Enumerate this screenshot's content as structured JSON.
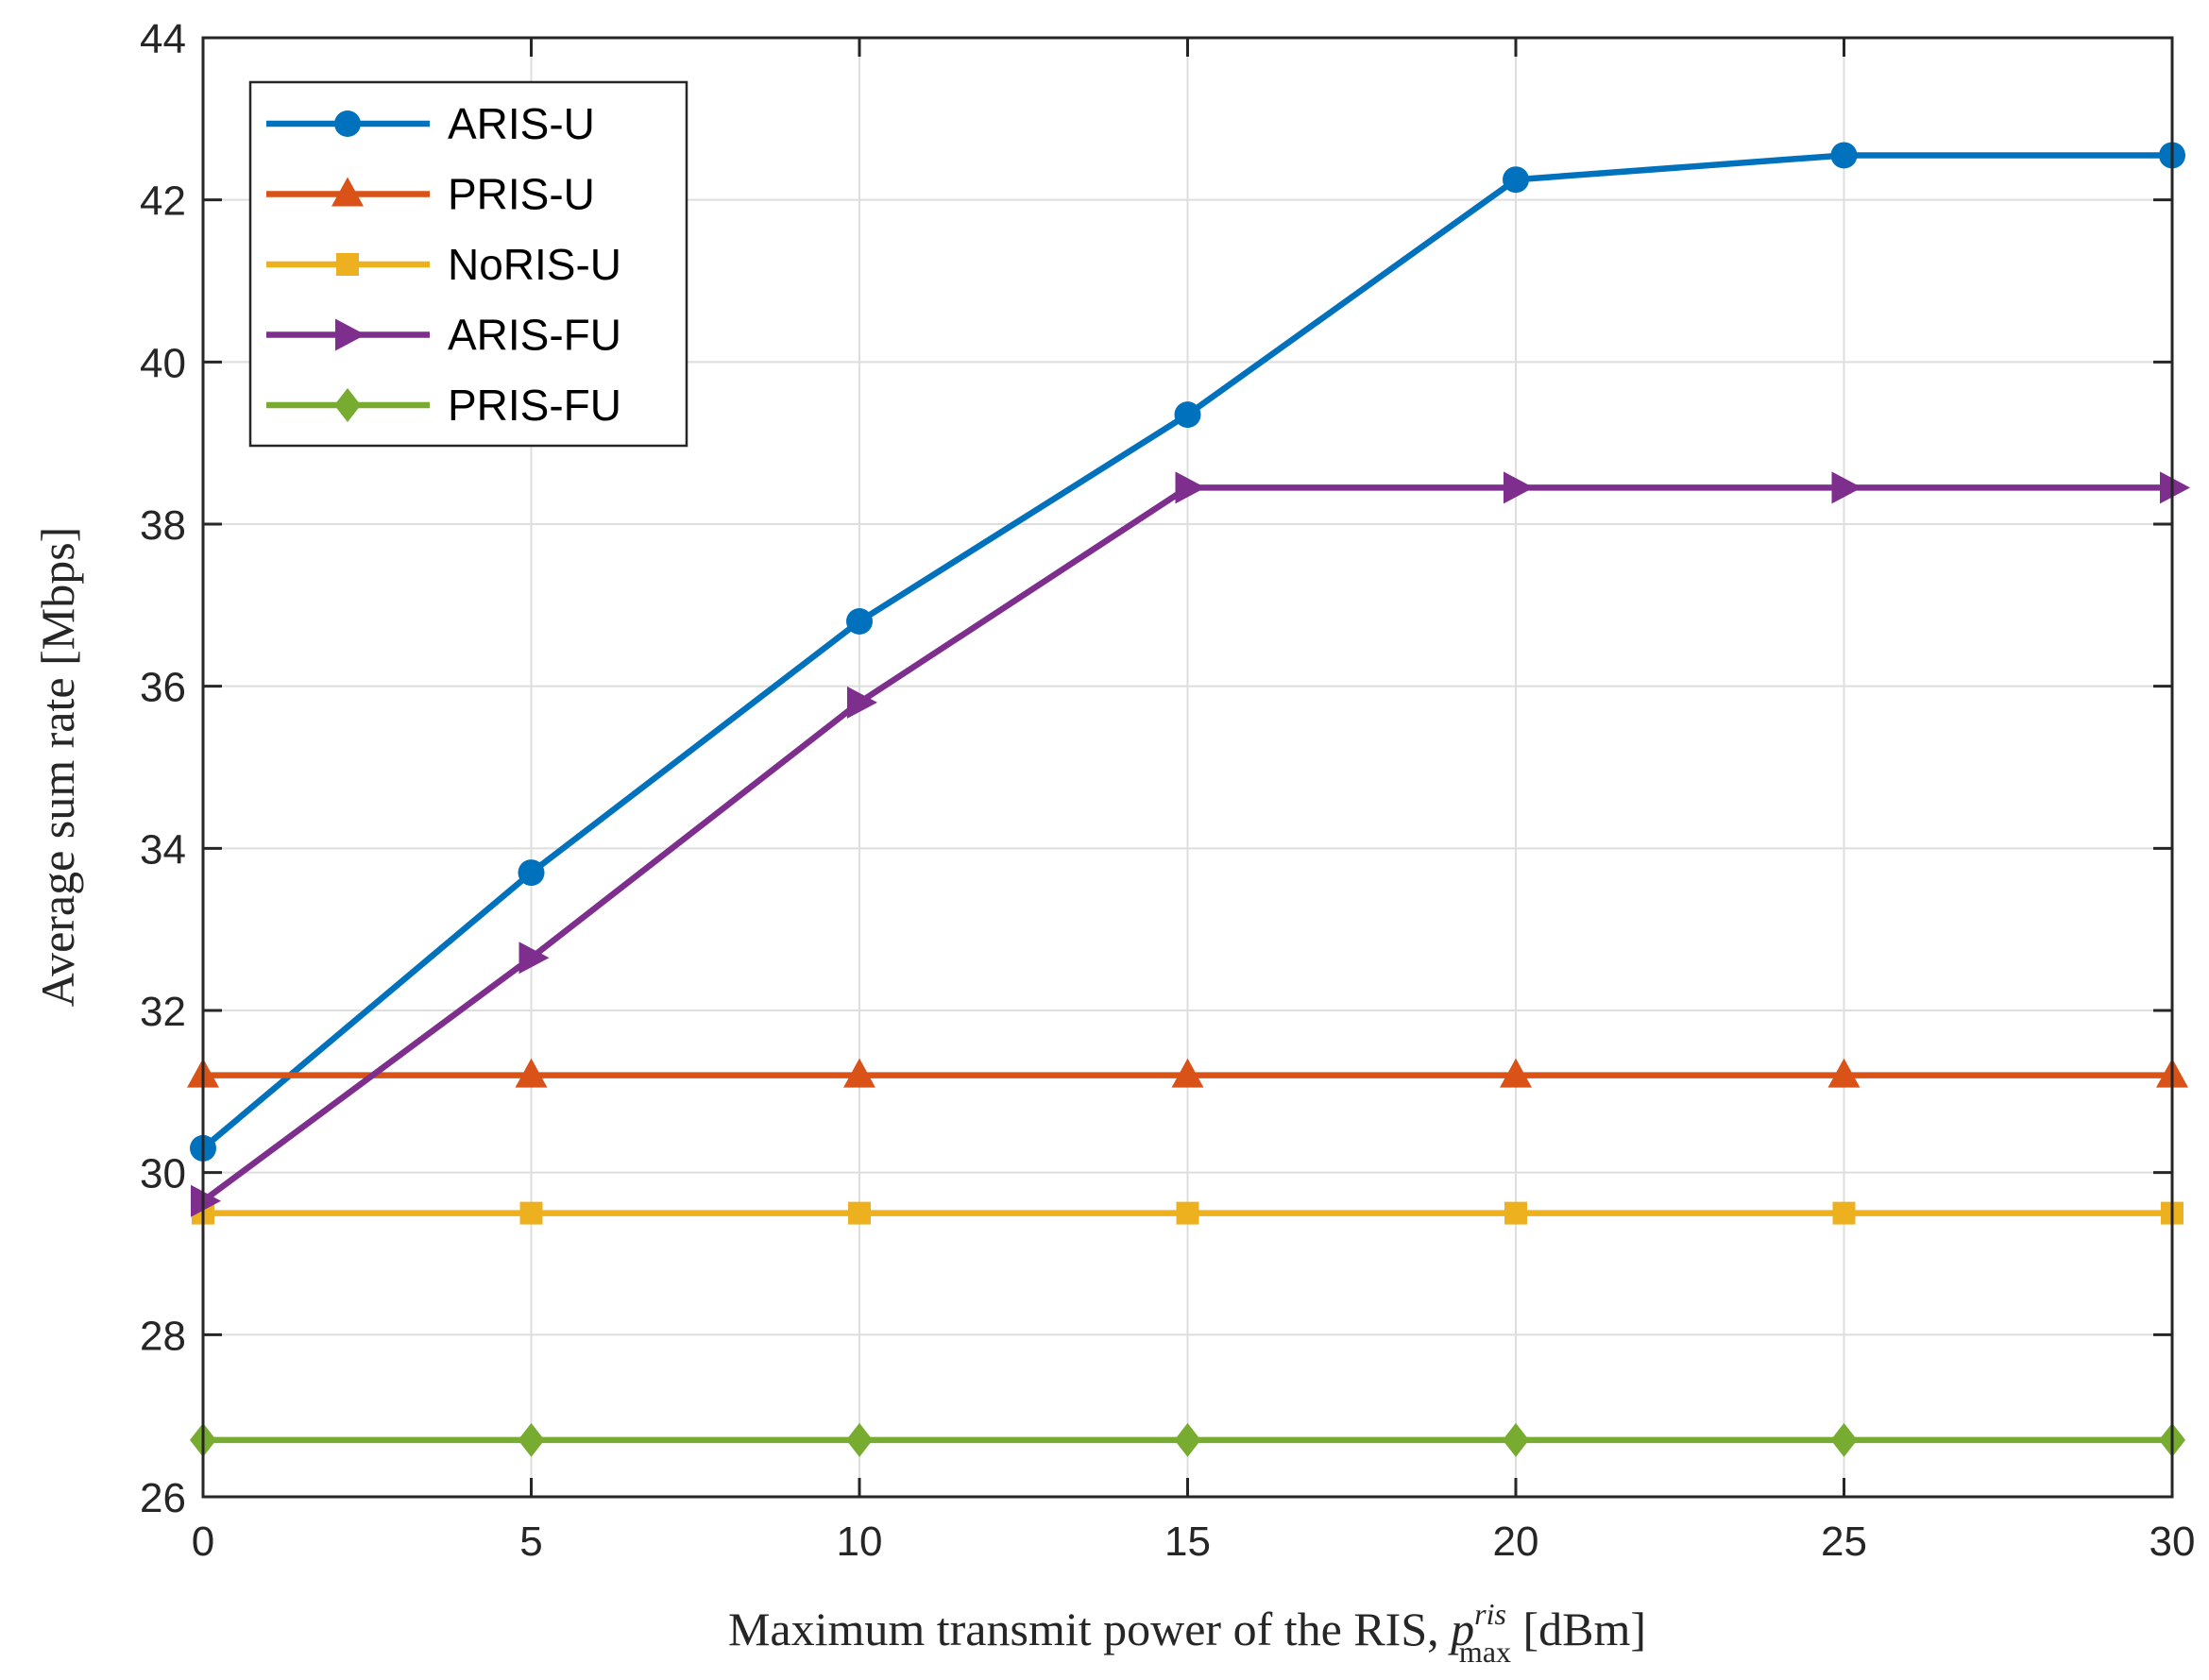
{
  "chart_data": {
    "type": "line",
    "title": "",
    "x": [
      0,
      5,
      10,
      15,
      20,
      25,
      30
    ],
    "xlim": [
      0,
      30
    ],
    "ylim": [
      26,
      44
    ],
    "xticks": [
      0,
      5,
      10,
      15,
      20,
      25,
      30
    ],
    "yticks": [
      26,
      28,
      30,
      32,
      34,
      36,
      38,
      40,
      42,
      44
    ],
    "xtick_labels": [
      "0",
      "5",
      "10",
      "15",
      "20",
      "25",
      "30"
    ],
    "ytick_labels": [
      "26",
      "28",
      "30",
      "32",
      "34",
      "36",
      "38",
      "40",
      "42",
      "44"
    ],
    "grid": true,
    "legend_position": "top-left",
    "xlabel": {
      "prefix": "Maximum transmit power of the RIS, ",
      "symbol": "p",
      "superscript": "ris",
      "subscript": "max",
      "suffix": " [dBm]"
    },
    "ylabel": "Average sum rate [Mbps]",
    "series": [
      {
        "name": "ARIS-U",
        "color": "#0072BD",
        "marker": "circle",
        "values": [
          30.3,
          33.7,
          36.8,
          39.35,
          42.25,
          42.55,
          42.55
        ]
      },
      {
        "name": "PRIS-U",
        "color": "#D95319",
        "marker": "triangle-up",
        "values": [
          31.2,
          31.2,
          31.2,
          31.2,
          31.2,
          31.2,
          31.2
        ]
      },
      {
        "name": "NoRIS-U",
        "color": "#EDB120",
        "marker": "square",
        "values": [
          29.5,
          29.5,
          29.5,
          29.5,
          29.5,
          29.5,
          29.5
        ]
      },
      {
        "name": "ARIS-FU",
        "color": "#7E2F8E",
        "marker": "triangle-right",
        "values": [
          29.65,
          32.65,
          35.8,
          38.45,
          38.45,
          38.45,
          38.45
        ]
      },
      {
        "name": "PRIS-FU",
        "color": "#77AC30",
        "marker": "diamond",
        "values": [
          26.7,
          26.7,
          26.7,
          26.7,
          26.7,
          26.7,
          26.7
        ]
      }
    ]
  }
}
